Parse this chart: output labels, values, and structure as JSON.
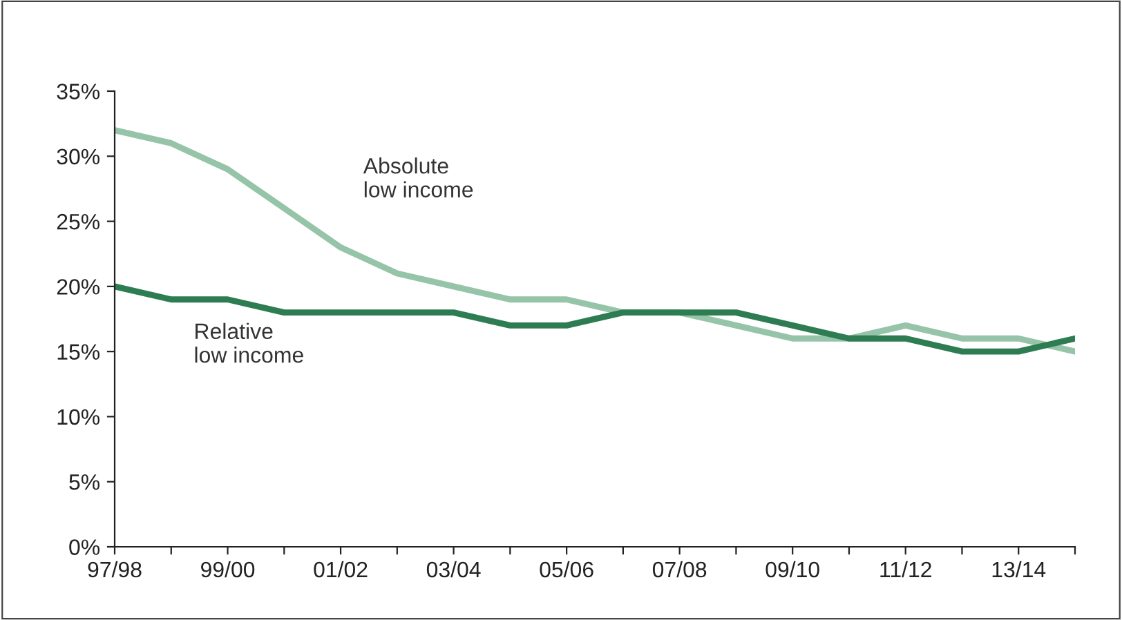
{
  "chart_data": {
    "type": "line",
    "categories": [
      "97/98",
      null,
      "99/00",
      null,
      "01/02",
      null,
      "03/04",
      null,
      "05/06",
      null,
      "07/08",
      null,
      "09/10",
      null,
      "11/12",
      null,
      "13/14",
      null
    ],
    "series": [
      {
        "name": "Absolute\nlow income",
        "color": "#96c4a8",
        "values": [
          32,
          31,
          29,
          26,
          23,
          21,
          20,
          19,
          19,
          18,
          18,
          17,
          16,
          16,
          17,
          16,
          16,
          15
        ]
      },
      {
        "name": "Relative\nlow income",
        "color": "#2e7d52",
        "values": [
          20,
          19,
          19,
          18,
          18,
          18,
          18,
          17,
          17,
          18,
          18,
          18,
          17,
          16,
          16,
          15,
          15,
          16
        ]
      }
    ],
    "ylim": [
      0,
      35
    ],
    "yticks": [
      {
        "value": 0,
        "label": "0%"
      },
      {
        "value": 5,
        "label": "5%"
      },
      {
        "value": 10,
        "label": "10%"
      },
      {
        "value": 15,
        "label": "15%"
      },
      {
        "value": 20,
        "label": "20%"
      },
      {
        "value": 25,
        "label": "25%"
      },
      {
        "value": 30,
        "label": "30%"
      },
      {
        "value": 35,
        "label": "35%"
      }
    ],
    "grid": false,
    "legend": false,
    "marker": "none",
    "line_style": "solid"
  }
}
